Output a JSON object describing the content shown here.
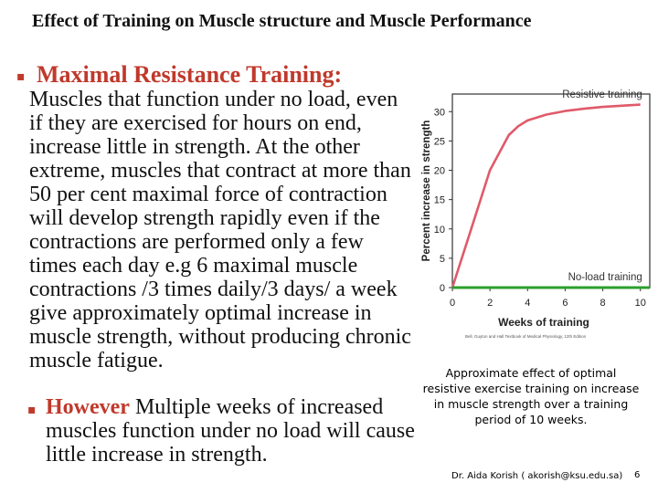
{
  "slide": {
    "title": "Effect of Training on Muscle structure and Muscle Performance",
    "bullet1_heading": "Maximal Resistance Training:",
    "body": "Muscles that function under no load, even if they are exercised for hours on end, increase little in strength. At the other extreme, muscles that contract at more than 50 per cent maximal force of contraction will develop strength rapidly even if the contractions are performed only a few times each day e.g 6 maximal muscle contractions /3 times daily/3 days/ a week give approximately optimal increase in muscle strength, without producing chronic muscle fatigue.",
    "bullet2_bold": "However",
    "bullet2_rest": " Multiple weeks of increased muscles function under no load will cause little  increase  in strength.",
    "bullet_glyph": "▪",
    "caption": "Approximate effect of optimal resistive exercise training on increase in muscle strength over a training period of 10 weeks.",
    "footer": "Dr. Aida Korish ( akorish@ksu.edu.sa)",
    "page_number": "6",
    "accent_color": "#c0392b"
  },
  "chart_data": {
    "type": "line",
    "xlabel": "Weeks of training",
    "ylabel": "Percent increase in strength",
    "x_ticks": [
      0,
      2,
      4,
      6,
      8,
      10
    ],
    "y_ticks": [
      0,
      5,
      10,
      15,
      20,
      25,
      30
    ],
    "xlim": [
      0,
      10.5
    ],
    "ylim": [
      0,
      33
    ],
    "source_note": "Bell, Guyton and Hall Textbook of Medical Physiology, 12th Edition",
    "series": [
      {
        "name": "Resistive training",
        "color": "#e05a6a",
        "x": [
          0,
          1,
          2,
          3,
          3.5,
          4,
          5,
          6,
          7,
          8,
          9,
          10
        ],
        "y": [
          0,
          10,
          20,
          26,
          27.5,
          28.5,
          29.5,
          30.1,
          30.5,
          30.8,
          31,
          31.2
        ]
      },
      {
        "name": "No-load training",
        "color": "#2ca02c",
        "x": [
          0,
          10.5
        ],
        "y": [
          0,
          0
        ]
      }
    ]
  }
}
